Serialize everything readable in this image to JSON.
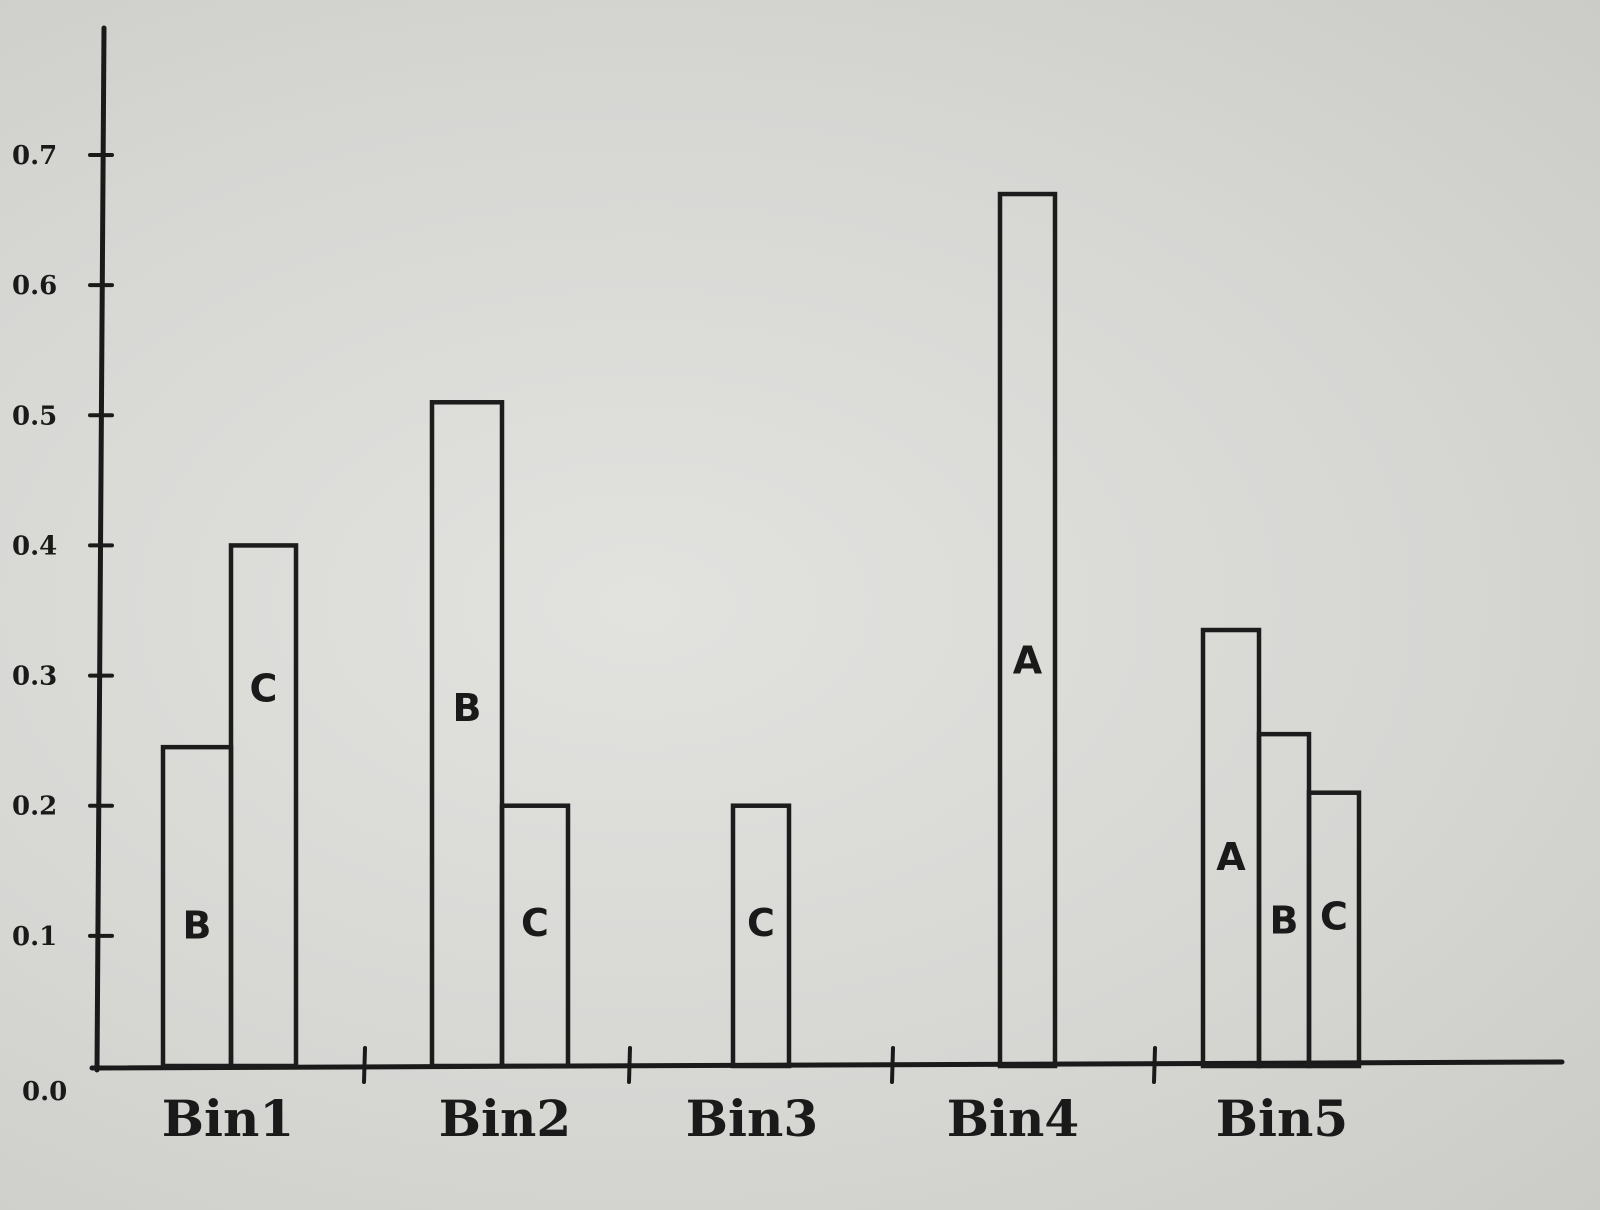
{
  "chart_data": {
    "type": "bar",
    "title": "",
    "xlabel": "",
    "ylabel": "",
    "ylim": [
      0,
      0.8
    ],
    "yticks": [
      {
        "value": 0.0,
        "label": "0.0"
      },
      {
        "value": 0.1,
        "label": "0.1"
      },
      {
        "value": 0.2,
        "label": "0.2"
      },
      {
        "value": 0.3,
        "label": "0.3"
      },
      {
        "value": 0.4,
        "label": "0.4"
      },
      {
        "value": 0.5,
        "label": "0.5"
      },
      {
        "value": 0.6,
        "label": "0.6"
      },
      {
        "value": 0.7,
        "label": "0.7"
      }
    ],
    "categories": [
      "Bin1",
      "Bin2",
      "Bin3",
      "Bin4",
      "Bin5"
    ],
    "series": [
      {
        "name": "A",
        "values": [
          0,
          0,
          0,
          0.67,
          0.335
        ]
      },
      {
        "name": "B",
        "values": [
          0.245,
          0.51,
          0,
          0,
          0.255
        ]
      },
      {
        "name": "C",
        "values": [
          0.4,
          0.2,
          0.2,
          0,
          0.21
        ]
      }
    ],
    "grid": false,
    "legend": "none"
  }
}
